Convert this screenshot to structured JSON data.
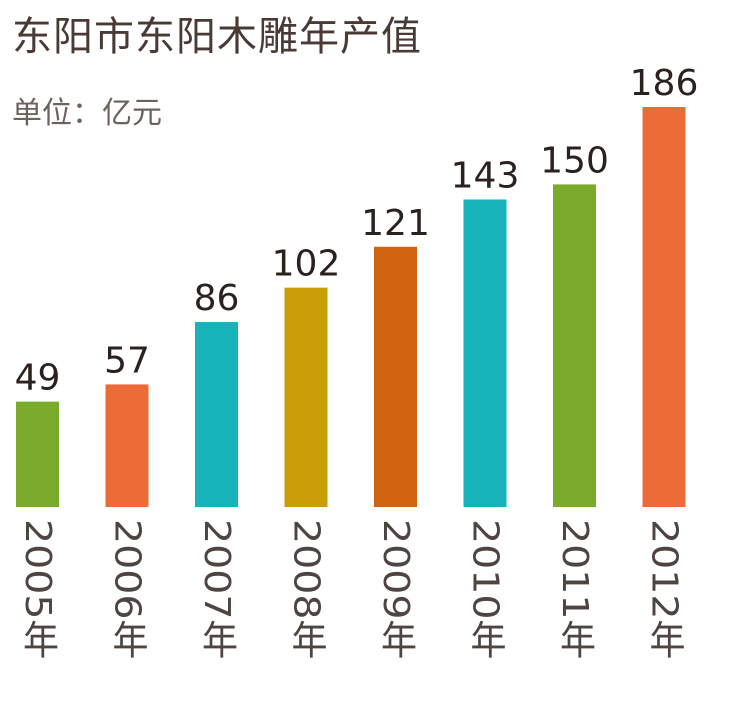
{
  "header": {
    "title": "东阳市东阳木雕年产值",
    "unit": "单位：亿元"
  },
  "chart_data": {
    "type": "bar",
    "title": "东阳市东阳木雕年产值",
    "subtitle": "单位：亿元",
    "categories": [
      "2005年",
      "2006年",
      "2007年",
      "2008年",
      "2009年",
      "2010年",
      "2011年",
      "2012年"
    ],
    "values": [
      49,
      57,
      86,
      102,
      121,
      143,
      150,
      186
    ],
    "colors": [
      "#7aab2a",
      "#ec6b37",
      "#16b3bb",
      "#c99e06",
      "#d06411",
      "#16b3bb",
      "#7aab2a",
      "#ec6b37"
    ],
    "ylim": [
      0,
      186
    ],
    "grid": false,
    "legend": "none",
    "category_label_orientation": "vertical"
  }
}
